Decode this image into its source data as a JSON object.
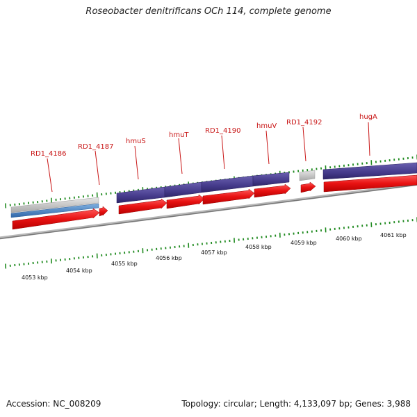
{
  "title": "Roseobacter denitrificans OCh 114, complete genome",
  "footer": {
    "accession": "Accession: NC_008209",
    "stats": "Topology: circular; Length: 4,133,097 bp; Genes: 3,988"
  },
  "gene_labels": [
    "RD1_4186",
    "RD1_4187",
    "hmuS",
    "hmuT",
    "RD1_4190",
    "hmuV",
    "RD1_4192",
    "hugA"
  ],
  "kbp_labels": [
    "4053 kbp",
    "4054 kbp",
    "4055 kbp",
    "4056 kbp",
    "4057 kbp",
    "4058 kbp",
    "4059 kbp",
    "4060 kbp",
    "4061 kbp"
  ],
  "colors": {
    "gene_red": "#e01010",
    "cds_purple": "#4a3f8f",
    "cds_gray": "#b4b4b4",
    "cds_blue": "#3f7cc0",
    "tick_green": "#1f8a1f",
    "label_red": "#c81414",
    "backbone": "#808080"
  }
}
